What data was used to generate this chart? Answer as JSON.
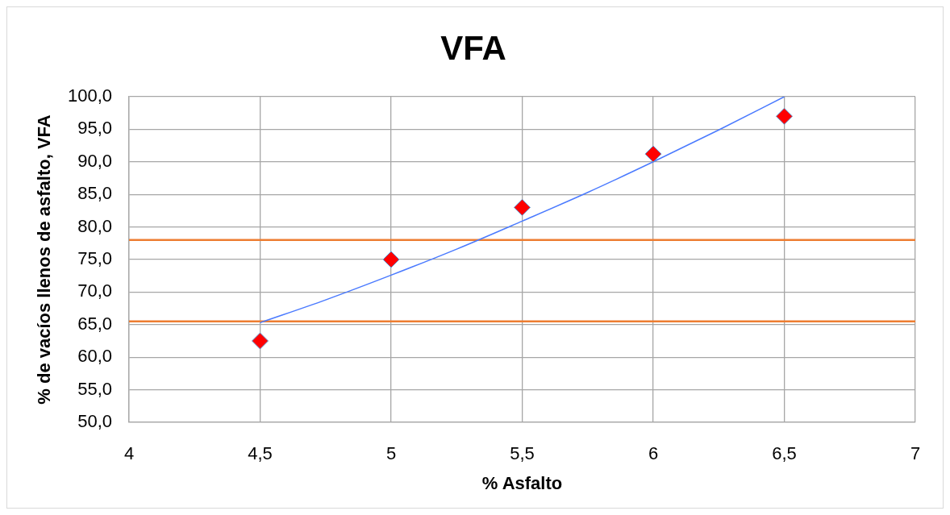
{
  "chart_data": {
    "type": "scatter",
    "title": "VFA",
    "xlabel": "% Asfalto",
    "ylabel": "% de vacíos llenos de asfalto, VFA",
    "xlim": [
      4,
      7
    ],
    "xticks": [
      4,
      {
        "value": 4.5,
        "label": "4,5"
      },
      5,
      {
        "value": 5.5,
        "label": "5,5"
      },
      6,
      {
        "value": 6.5,
        "label": "6,5"
      },
      7
    ],
    "ylim": [
      50,
      100
    ],
    "yticks": [
      {
        "value": 50,
        "label": "50,0"
      },
      {
        "value": 55,
        "label": "55,0"
      },
      {
        "value": 60,
        "label": "60,0"
      },
      {
        "value": 65,
        "label": "65,0"
      },
      {
        "value": 70,
        "label": "70,0"
      },
      {
        "value": 75,
        "label": "75,0"
      },
      {
        "value": 80,
        "label": "80,0"
      },
      {
        "value": 85,
        "label": "85,0"
      },
      {
        "value": 90,
        "label": "90,0"
      },
      {
        "value": 95,
        "label": "95,0"
      },
      {
        "value": 100,
        "label": "100,0"
      }
    ],
    "grid": true,
    "series": [
      {
        "color": "#ff0000",
        "marker": "diamond",
        "x": [
          4.5,
          5,
          5.5,
          6,
          6.5
        ],
        "values": [
          62.5,
          75.0,
          83.0,
          91.2,
          97.0
        ]
      },
      {
        "type": "line",
        "color": "#4a7aff",
        "marker": "none",
        "line_style": "solid",
        "x": [
          4.5,
          4.75,
          5,
          5.25,
          5.5,
          5.75,
          6,
          6.25,
          6.5
        ],
        "values": [
          65.3,
          68.8,
          72.6,
          76.6,
          80.9,
          85.3,
          90.0,
          94.9,
          100
        ]
      }
    ],
    "ref_lines": [
      {
        "axis": "y",
        "value": 78,
        "color": "#ed7d31"
      },
      {
        "axis": "y",
        "value": 65.5,
        "color": "#ed7d31"
      }
    ]
  }
}
